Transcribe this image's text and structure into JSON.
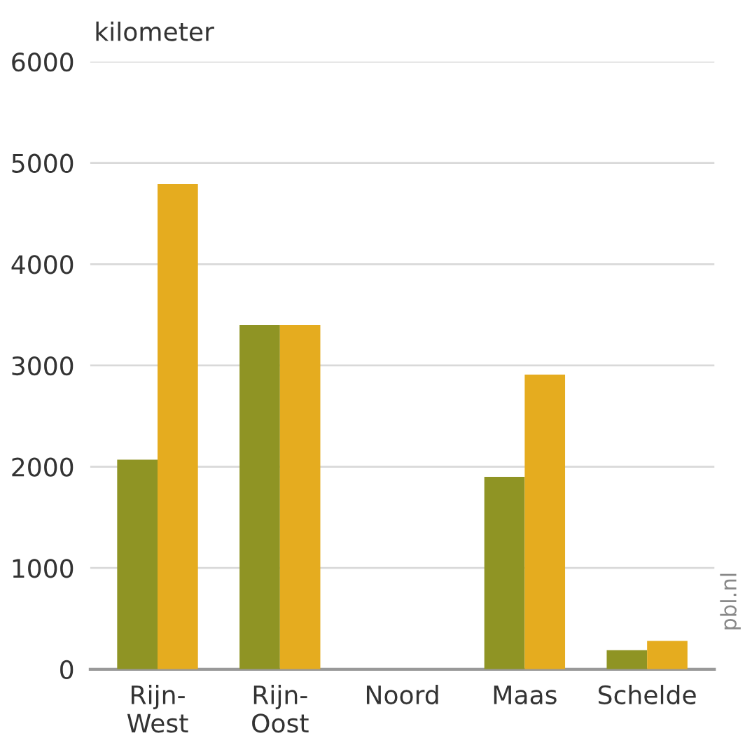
{
  "chart_data": {
    "type": "bar",
    "ylabel": "kilometer",
    "categories": [
      "Rijn-\nWest",
      "Rijn-\nOost",
      "Noord",
      "Maas",
      "Schelde"
    ],
    "series": [
      {
        "color": "#8f9424",
        "values": [
          2070,
          3400,
          0,
          1900,
          190
        ]
      },
      {
        "color": "#e5ac1f",
        "values": [
          4790,
          3400,
          0,
          2910,
          280
        ]
      }
    ],
    "ylim": [
      0,
      6000
    ],
    "yticks": [
      0,
      1000,
      2000,
      3000,
      4000,
      5000,
      6000
    ],
    "grid": "y",
    "annotations": [
      "pbl.nl"
    ]
  }
}
